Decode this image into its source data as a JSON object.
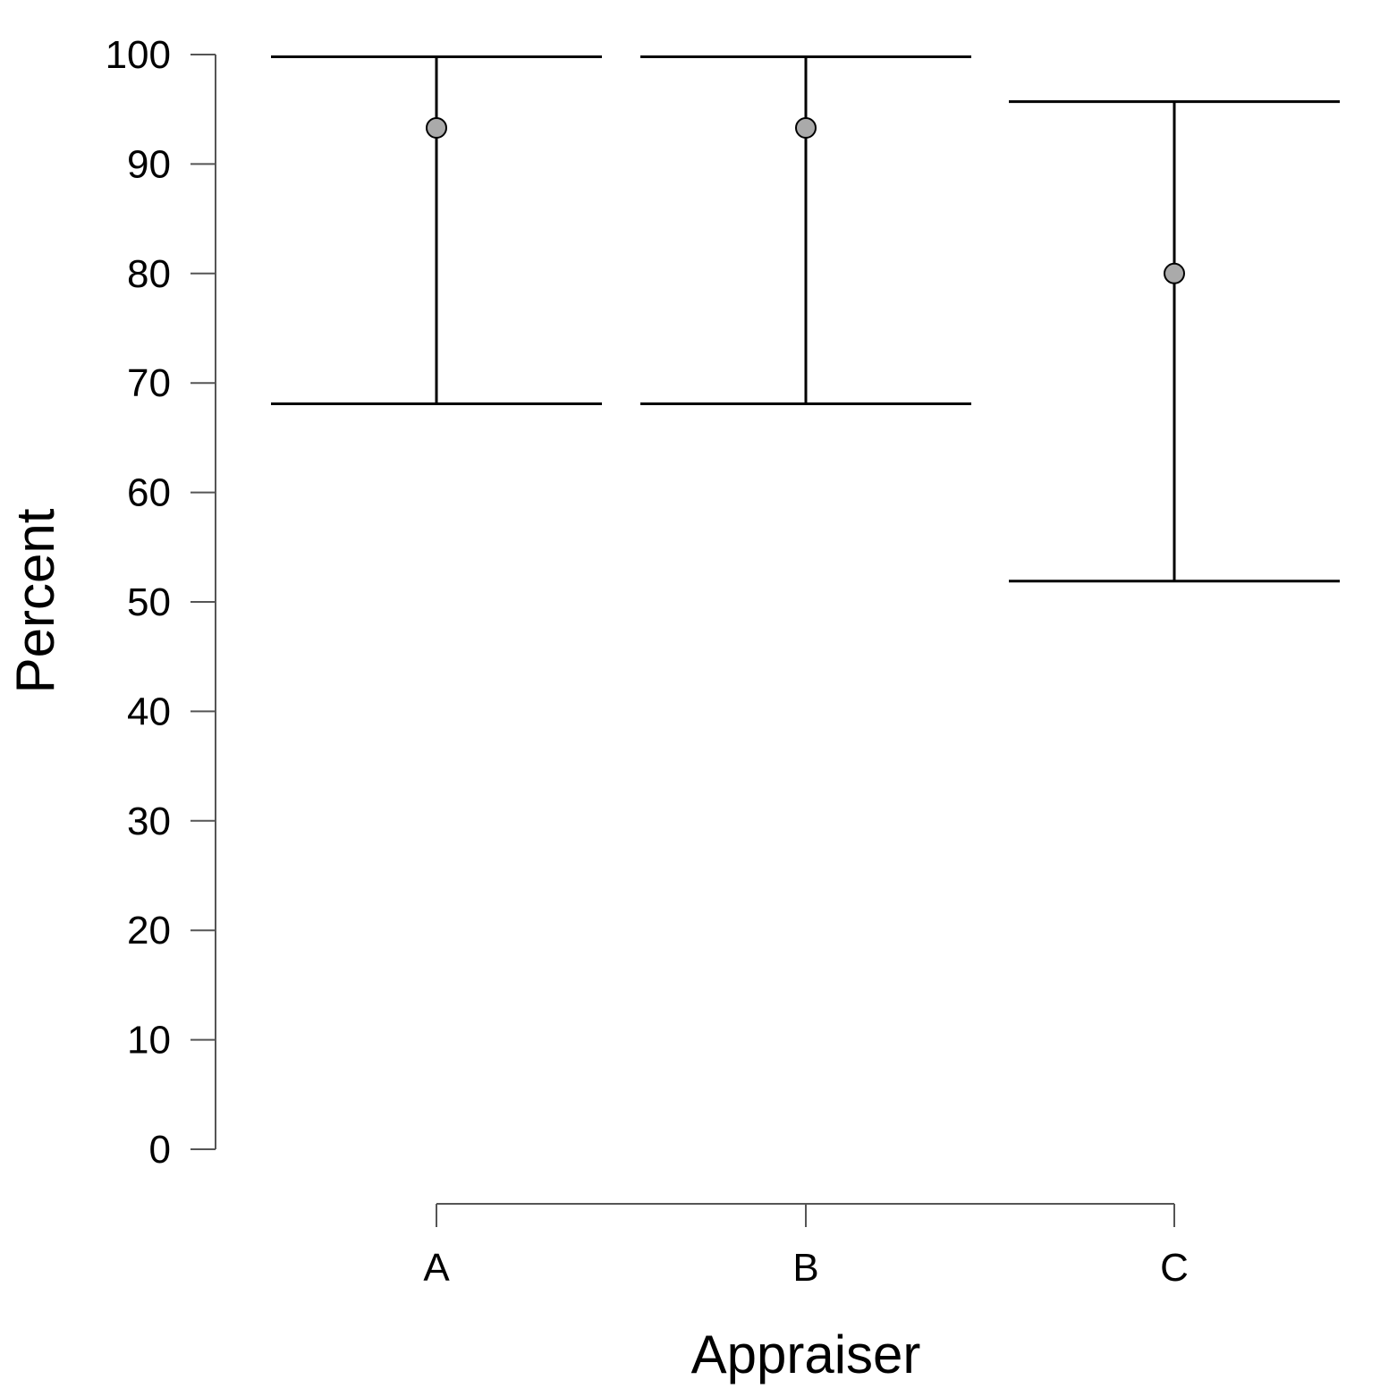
{
  "chart_data": {
    "type": "errorbar",
    "title": "",
    "xlabel": "Appraiser",
    "ylabel": "Percent",
    "categories": [
      "A",
      "B",
      "C"
    ],
    "values": [
      93.3,
      93.3,
      80.0
    ],
    "ci_lower": [
      68.1,
      68.1,
      51.9
    ],
    "ci_upper": [
      99.8,
      99.8,
      95.7
    ],
    "ylim": [
      0,
      100
    ],
    "yticks": [
      0,
      10,
      20,
      30,
      40,
      50,
      60,
      70,
      80,
      90,
      100
    ],
    "grid": false,
    "legend": "none",
    "colors": {
      "axis": "#555555",
      "errorbar": "#000000",
      "marker_fill": "#aaaaaa",
      "marker_stroke": "#000000"
    }
  }
}
